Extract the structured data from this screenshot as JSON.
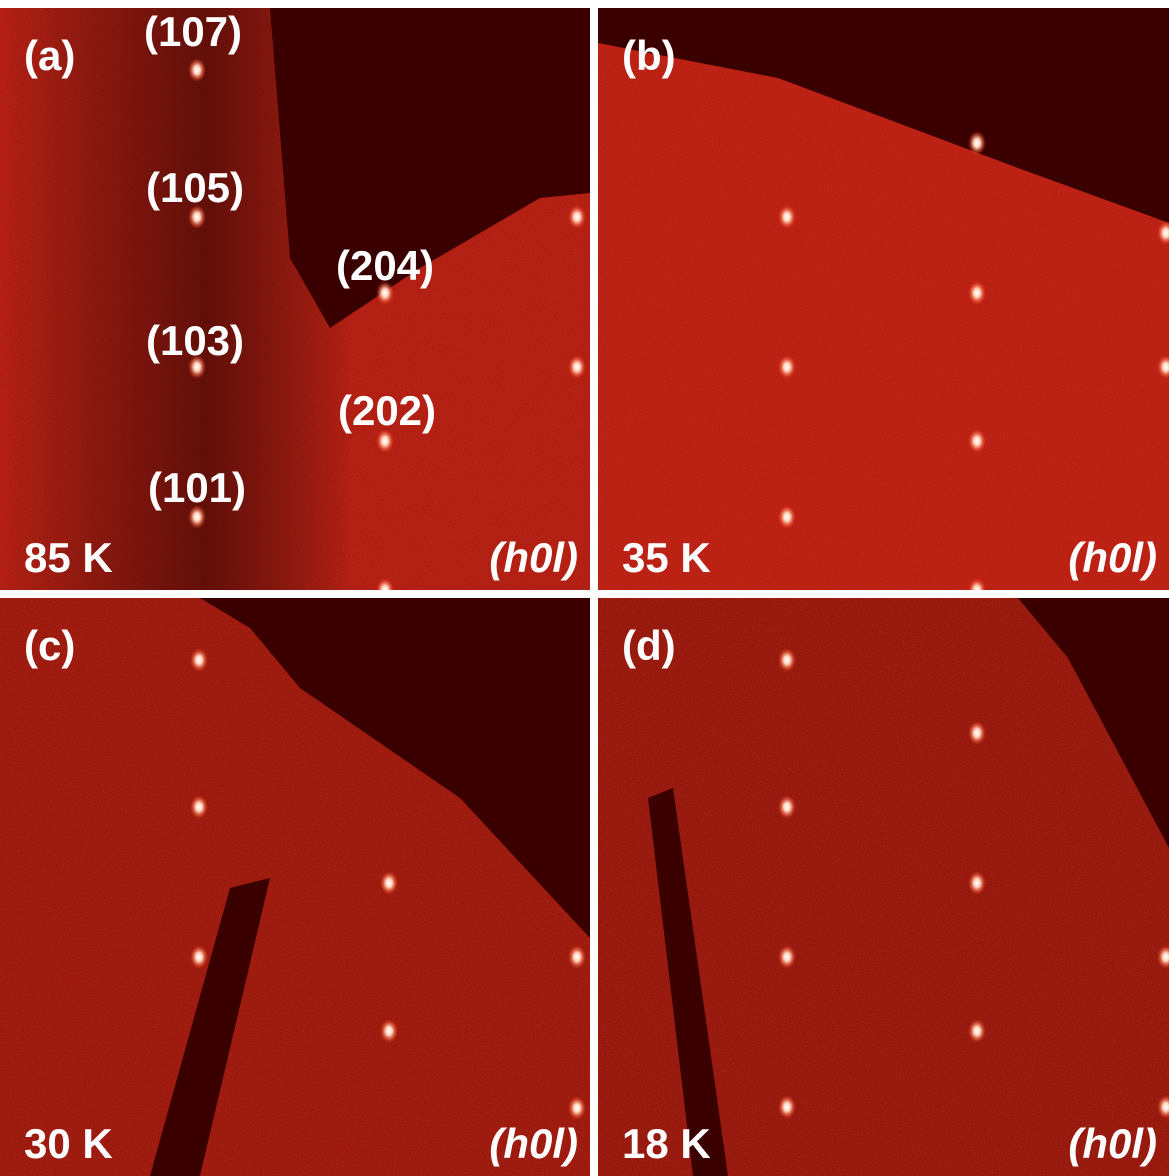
{
  "panels": [
    {
      "label": "(a)",
      "temperature": "85 K",
      "plane": "(h0l)",
      "peaks": [
        "(107)",
        "(105)",
        "(204)",
        "(103)",
        "(202)",
        "(101)"
      ]
    },
    {
      "label": "(b)",
      "temperature": "35 K",
      "plane": "(h0l)"
    },
    {
      "label": "(c)",
      "temperature": "30 K",
      "plane": "(h0l)"
    },
    {
      "label": "(d)",
      "temperature": "18 K",
      "plane": "(h0l)"
    }
  ]
}
